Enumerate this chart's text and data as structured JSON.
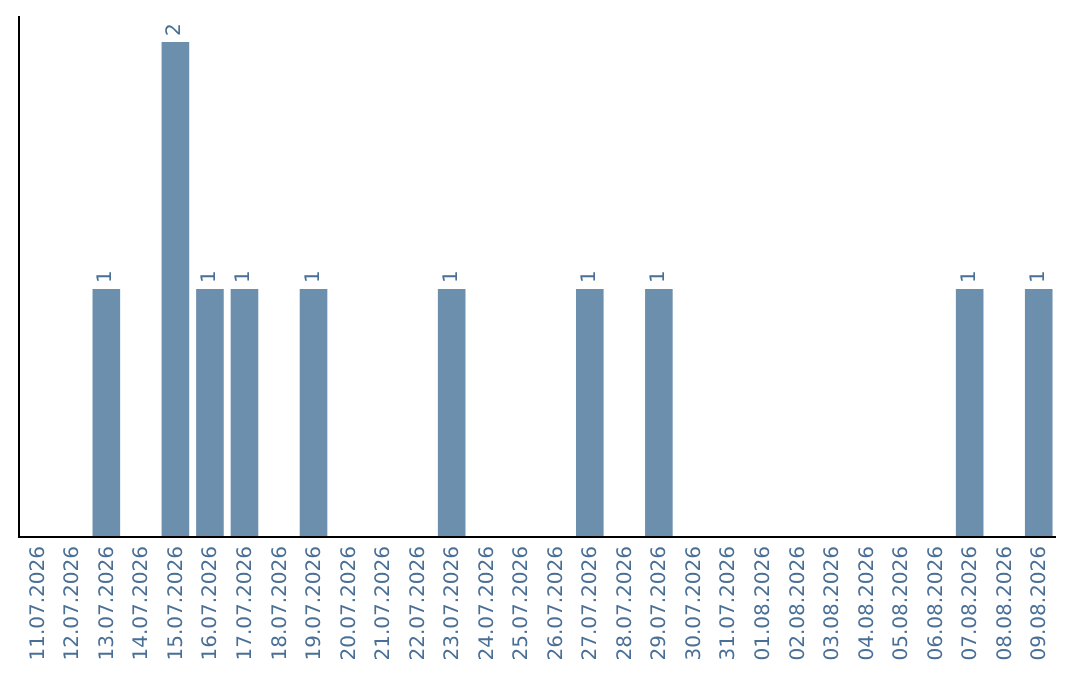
{
  "chart_data": {
    "type": "bar",
    "categories": [
      "11.07.2026",
      "12.07.2026",
      "13.07.2026",
      "14.07.2026",
      "15.07.2026",
      "16.07.2026",
      "17.07.2026",
      "18.07.2026",
      "19.07.2026",
      "20.07.2026",
      "21.07.2026",
      "22.07.2026",
      "23.07.2026",
      "24.07.2026",
      "25.07.2026",
      "26.07.2026",
      "27.07.2026",
      "28.07.2026",
      "29.07.2026",
      "30.07.2026",
      "31.07.2026",
      "01.08.2026",
      "02.08.2026",
      "03.08.2026",
      "04.08.2026",
      "05.08.2026",
      "06.08.2026",
      "07.08.2026",
      "08.08.2026",
      "09.08.2026"
    ],
    "values": [
      0,
      0,
      1,
      0,
      2,
      1,
      1,
      0,
      1,
      0,
      0,
      0,
      1,
      0,
      0,
      0,
      1,
      0,
      1,
      0,
      0,
      0,
      0,
      0,
      0,
      0,
      0,
      1,
      0,
      1
    ],
    "value_labels": [
      null,
      null,
      "1",
      null,
      "2",
      "1",
      "1",
      null,
      "1",
      null,
      null,
      null,
      "1",
      null,
      null,
      null,
      "1",
      null,
      "1",
      null,
      null,
      null,
      null,
      null,
      null,
      null,
      null,
      "1",
      null,
      "1"
    ],
    "color": "#6d8fae",
    "tick_labels": "x",
    "grid": false,
    "legend": false
  }
}
